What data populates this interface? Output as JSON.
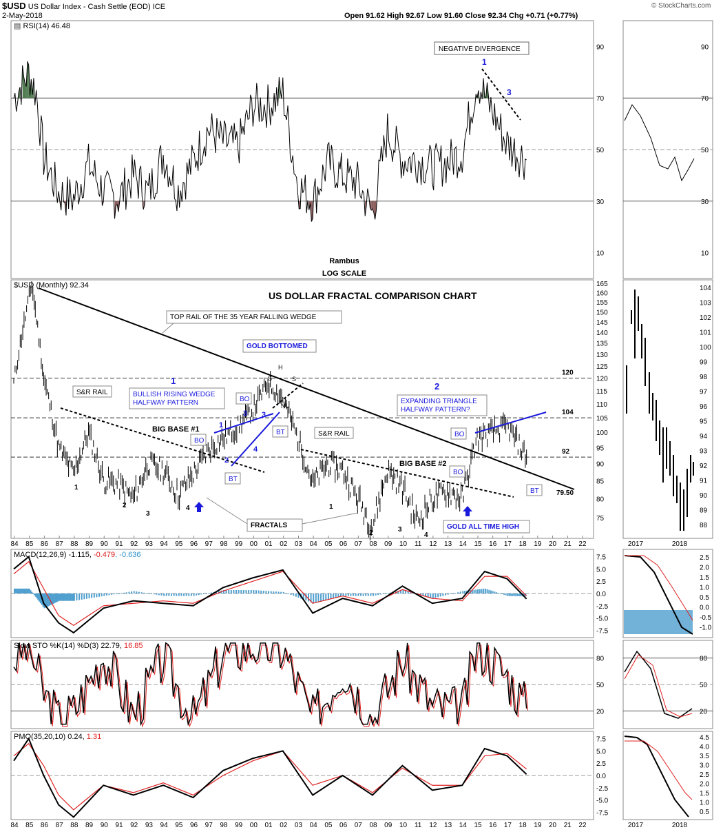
{
  "header": {
    "symbol": "$USD",
    "name": "US Dollar Index - Cash Settle (EOD)",
    "exchange": "ICE",
    "date": "2-May-2018",
    "quote": "Open 91.62  High 92.67  Low 91.60  Close 92.34  Chg +0.71 (+0.77%)",
    "credit": "© StockCharts.com"
  },
  "colors": {
    "grid": "#999999",
    "line": "#000000",
    "blue": "#1a1adc",
    "red": "#e02020",
    "green": "#4f7a4f",
    "brown": "#8a5a5a",
    "hist": "#4f9fcf"
  },
  "x_axis": {
    "main_labels": [
      "84",
      "85",
      "86",
      "87",
      "88",
      "89",
      "90",
      "91",
      "92",
      "93",
      "94",
      "95",
      "96",
      "97",
      "98",
      "99",
      "00",
      "01",
      "02",
      "03",
      "04",
      "05",
      "06",
      "07",
      "08",
      "09",
      "10",
      "11",
      "12",
      "13",
      "14",
      "15",
      "16",
      "17",
      "18",
      "19",
      "20",
      "21",
      "22"
    ],
    "side_labels": [
      "2017",
      "2018"
    ]
  },
  "rsi": {
    "label": "RSI(14) 46.48",
    "ticks": [
      "90",
      "70",
      "50",
      "30",
      "10"
    ],
    "notes": [
      "NEGATIVE DIVERGENCE",
      "1",
      "3",
      "Rambus",
      "LOG SCALE"
    ]
  },
  "price": {
    "label": "$USD (Monthly) 92.34",
    "title": "US DOLLAR FRACTAL COMPARISON CHART",
    "ticks_main": [
      "165",
      "160",
      "155",
      "150",
      "145",
      "140",
      "135",
      "130",
      "125",
      "120",
      "115",
      "110",
      "105",
      "100",
      "95",
      "90",
      "85",
      "80",
      "75"
    ],
    "ticks_side": [
      "104",
      "103",
      "102",
      "101",
      "100",
      "99",
      "98",
      "97",
      "96",
      "95",
      "94",
      "93",
      "92",
      "91",
      "90",
      "89",
      "88"
    ],
    "levels": [
      "120",
      "104",
      "92",
      "79.50"
    ],
    "callouts": {
      "top_rail": "TOP RAIL OF THE 35 YEAR FALLING WEDGE",
      "gold_bottomed": "GOLD BOTTOMED",
      "sr_rail_1": "S&R RAIL",
      "sr_rail_2": "S&R RAIL",
      "bullish_wedge_1": "BULLISH RISING WEDGE",
      "bullish_wedge_2": "HALFWAY PATTERN",
      "expanding_1": "EXPANDING TRIANGLE",
      "expanding_2": "HALFWAY PATTERN?",
      "big_base_1": "BIG BASE #1",
      "big_base_2": "BIG BASE #2",
      "fractals": "FRACTALS",
      "gold_ath": "GOLD ALL TIME HIGH",
      "bo": "BO",
      "bt": "BT",
      "one": "1",
      "two": "2",
      "three": "3",
      "four": "4",
      "h": "H",
      "s": "S",
      "nl": "NL"
    }
  },
  "macd": {
    "label_prefix": "MACD(12,26,9) -1.115, ",
    "label_signal": "-0.479",
    "label_hist": ", -0.636",
    "ticks_main": [
      "7.5",
      "5.0",
      "2.5",
      "0.0",
      "-2.5",
      "-5.0",
      "-7.5"
    ],
    "ticks_side": [
      "2.5",
      "2.0",
      "1.5",
      "1.0",
      "0.5",
      "0.0",
      "-0.5",
      "-1.0"
    ]
  },
  "sto": {
    "label_prefix": "Slow STO %K(14) %D(3) 22.79, ",
    "label_d": "16.85",
    "ticks": [
      "80",
      "50",
      "20"
    ]
  },
  "pmo": {
    "label_prefix": "PMO(35,20,10) 0.24, ",
    "label_signal": "1.31",
    "ticks_main": [
      "7.5",
      "5.0",
      "2.5",
      "0.0",
      "-2.5",
      "-5.0",
      "-7.5"
    ],
    "ticks_side": [
      "4.5",
      "4.0",
      "3.5",
      "3.0",
      "2.5",
      "2.0",
      "1.5",
      "1.0",
      "0.5"
    ]
  },
  "chart_data": [
    {
      "type": "line",
      "title": "RSI(14)",
      "x": [
        1984,
        1985,
        1985.5,
        1986,
        1987,
        1988,
        1989,
        1990,
        1991,
        1992,
        1993,
        1994,
        1995,
        1996,
        1997,
        1998,
        1999,
        2000,
        2001,
        2002,
        2003,
        2004,
        2005,
        2006,
        2007,
        2008,
        2009,
        2010,
        2011,
        2012,
        2013,
        2014,
        2015,
        2016,
        2017,
        2018.3
      ],
      "values": [
        70,
        80,
        72,
        47,
        33,
        31,
        44,
        34,
        31,
        40,
        33,
        48,
        34,
        45,
        58,
        53,
        51,
        67,
        67,
        72,
        36,
        30,
        45,
        40,
        37,
        25,
        57,
        46,
        46,
        43,
        45,
        49,
        77,
        65,
        52,
        46
      ],
      "ylim": [
        0,
        100
      ]
    },
    {
      "type": "line",
      "title": "$USD (Monthly) 92.34",
      "x": [
        1984,
        1985.2,
        1986,
        1987,
        1988,
        1989,
        1990,
        1991,
        1992,
        1993,
        1994,
        1995,
        1996,
        1997,
        1998,
        1999,
        2000,
        2001,
        2002,
        2003,
        2004,
        2005,
        2006,
        2007,
        2008,
        2009,
        2010,
        2011,
        2012,
        2013,
        2014,
        2015,
        2016,
        2017,
        2018.3
      ],
      "values": [
        118,
        164,
        120,
        95,
        87,
        100,
        85,
        84,
        80,
        90,
        88,
        81,
        87,
        94,
        98,
        102,
        108,
        118,
        112,
        98,
        84,
        90,
        88,
        80,
        73,
        88,
        83,
        74,
        80,
        82,
        80,
        98,
        100,
        102,
        92
      ],
      "ylim": [
        70,
        167
      ]
    },
    {
      "type": "line",
      "title": "MACD(12,26,9)",
      "x": [
        1984,
        1985,
        1986,
        1987,
        1988,
        1990,
        1992,
        1994,
        1996,
        1998,
        2000,
        2002,
        2004,
        2006,
        2008,
        2010,
        2012,
        2014,
        2015.5,
        2017,
        2018.3
      ],
      "values": [
        5,
        7.5,
        -2,
        -6,
        -8,
        -3,
        -1.5,
        -2,
        -2.5,
        1.2,
        3.2,
        4.8,
        -4,
        -1,
        -2.5,
        1.5,
        -2,
        -1,
        4.5,
        3,
        -1.1
      ],
      "signal": [
        4,
        6.5,
        1,
        -4.5,
        -6.5,
        -2.5,
        -2,
        -1.5,
        -2,
        0.5,
        2.5,
        4.5,
        -2,
        -0.5,
        -2,
        0.8,
        -1,
        -1.5,
        3.5,
        3.5,
        -0.5
      ],
      "ylim": [
        -9,
        9
      ]
    },
    {
      "type": "line",
      "title": "Slow STO %K(14) %D(3)",
      "x": [
        1984,
        1985,
        1986,
        1987,
        1988,
        1990,
        1992,
        1994,
        1996,
        1998,
        2000,
        2002,
        2004,
        2006,
        2008,
        2010,
        2012,
        2014,
        2015,
        2017,
        2018.3
      ],
      "values": [
        80,
        95,
        40,
        10,
        20,
        85,
        15,
        80,
        10,
        85,
        95,
        90,
        10,
        70,
        10,
        80,
        25,
        20,
        95,
        60,
        22.79
      ],
      "ylim": [
        0,
        100
      ]
    },
    {
      "type": "line",
      "title": "PMO(35,20,10)",
      "x": [
        1984,
        1985,
        1986,
        1987,
        1988,
        1990,
        1992,
        1994,
        1996,
        1998,
        2000,
        2002,
        2004,
        2006,
        2008,
        2010,
        2012,
        2014,
        2015.5,
        2017,
        2018.3
      ],
      "values": [
        3,
        7.5,
        0,
        -6,
        -8.5,
        -2,
        -4,
        -2,
        -4.5,
        1,
        3.5,
        5,
        -4,
        0,
        -4,
        2,
        -3,
        -2,
        5.5,
        4,
        0.24
      ],
      "signal": [
        4,
        6.5,
        2,
        -4,
        -7,
        -2,
        -3.5,
        -1.5,
        -4,
        0,
        3,
        5,
        -2,
        0,
        -3.5,
        1.5,
        -2,
        -2,
        4,
        4.5,
        1.31
      ],
      "ylim": [
        -9,
        9
      ]
    }
  ]
}
